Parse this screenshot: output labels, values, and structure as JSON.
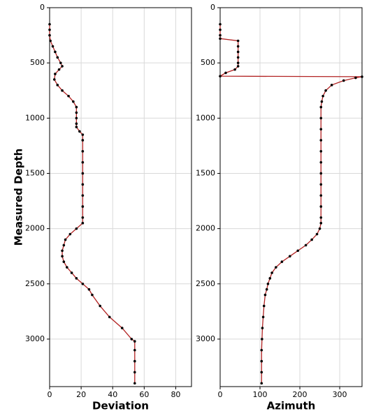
{
  "chart_data": [
    {
      "type": "line",
      "xlabel": "Deviation",
      "ylabel": "Measured Depth",
      "color": "#b22222",
      "marker_color": "#000000",
      "grid": true,
      "xlim": [
        0,
        90
      ],
      "xticks": [
        0,
        20,
        40,
        60,
        80
      ],
      "ylim": [
        3430,
        0
      ],
      "yticks": [
        0,
        500,
        1000,
        1500,
        2000,
        2500,
        3000
      ],
      "y": [
        150,
        200,
        250,
        300,
        350,
        400,
        450,
        500,
        530,
        560,
        600,
        650,
        700,
        750,
        800,
        850,
        900,
        950,
        1000,
        1050,
        1080,
        1120,
        1150,
        1200,
        1300,
        1400,
        1500,
        1600,
        1700,
        1800,
        1900,
        1950,
        2000,
        2050,
        2100,
        2150,
        2200,
        2250,
        2300,
        2350,
        2400,
        2450,
        2500,
        2550,
        2600,
        2700,
        2800,
        2900,
        3000,
        3020,
        3100,
        3200,
        3300,
        3400
      ],
      "x": [
        0,
        0,
        0,
        0.5,
        2,
        3.5,
        5,
        7,
        8,
        6,
        3.5,
        3,
        5,
        8,
        12,
        15,
        17,
        17,
        17,
        17,
        17,
        19,
        21,
        21,
        21,
        21,
        21,
        21,
        21,
        21,
        21,
        21,
        17,
        13,
        10,
        9,
        8,
        8,
        9,
        11,
        14,
        17,
        21,
        25,
        27,
        32,
        38,
        46,
        52,
        54,
        54,
        54,
        54,
        54
      ]
    },
    {
      "type": "line",
      "xlabel": "Azimuth",
      "color": "#b22222",
      "marker_color": "#000000",
      "grid": true,
      "xlim": [
        0,
        356
      ],
      "xticks": [
        0,
        100,
        200,
        300
      ],
      "ylim": [
        3430,
        0
      ],
      "yticks": [
        0,
        500,
        1000,
        1500,
        2000,
        2500,
        3000
      ],
      "y": [
        150,
        200,
        250,
        280,
        300,
        350,
        400,
        450,
        500,
        530,
        560,
        590,
        620,
        625,
        635,
        660,
        700,
        750,
        800,
        850,
        900,
        1000,
        1100,
        1200,
        1300,
        1400,
        1500,
        1600,
        1700,
        1800,
        1900,
        1950,
        2000,
        2050,
        2100,
        2150,
        2200,
        2250,
        2300,
        2350,
        2400,
        2450,
        2500,
        2550,
        2600,
        2700,
        2800,
        2900,
        3000,
        3100,
        3200,
        3300,
        3400
      ],
      "x": [
        0,
        0,
        0,
        0,
        45,
        45,
        45,
        45,
        45,
        45,
        37,
        14,
        0,
        356,
        340,
        310,
        280,
        265,
        258,
        255,
        253,
        253,
        253,
        253,
        253,
        253,
        253,
        253,
        253,
        253,
        253,
        253,
        250,
        243,
        230,
        215,
        195,
        175,
        155,
        140,
        130,
        125,
        120,
        117,
        113,
        110,
        108,
        106,
        105,
        104,
        104,
        104,
        104
      ]
    }
  ]
}
